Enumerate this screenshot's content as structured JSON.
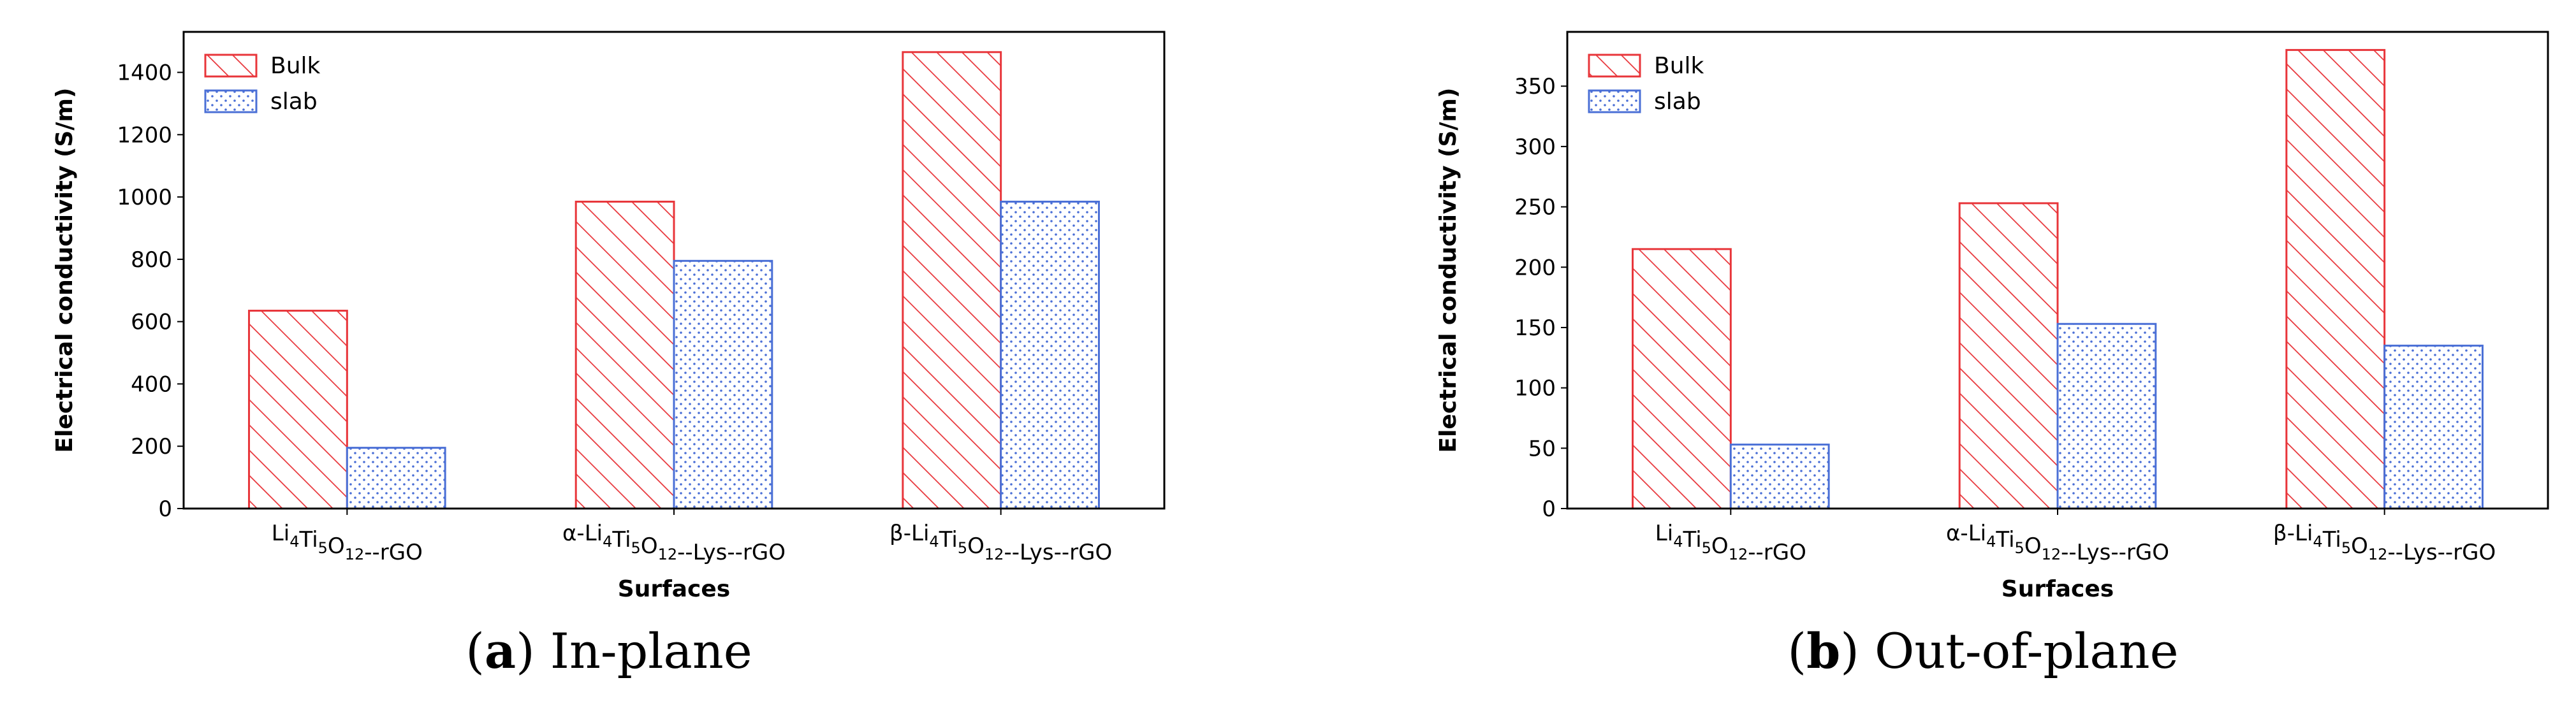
{
  "colors": {
    "bulk": "#e8353a",
    "slab": "#4a6fd6"
  },
  "legend": {
    "bulk": "Bulk",
    "slab": "slab"
  },
  "captions": [
    {
      "letter": "a",
      "text": " In-plane"
    },
    {
      "letter": "b",
      "text": " Out-of-plane"
    }
  ],
  "chart_data": [
    {
      "type": "bar",
      "categories": [
        "Li4Ti5O12--rGO",
        "α-Li4Ti5O12--Lys--rGO",
        "β-Li4Ti5O12--Lys--rGO"
      ],
      "series": [
        {
          "name": "Bulk",
          "values": [
            635,
            985,
            1465
          ]
        },
        {
          "name": "slab",
          "values": [
            195,
            795,
            985
          ]
        }
      ],
      "xlabel": "Surfaces",
      "ylabel": "Electrical conductivity (S/m)",
      "ylim": [
        0,
        1530
      ],
      "yticks": [
        0,
        200,
        400,
        600,
        800,
        1000,
        1200,
        1400
      ],
      "legend_position": "top-left",
      "grid": false
    },
    {
      "type": "bar",
      "categories": [
        "Li4Ti5O12--rGO",
        "α-Li4Ti5O12--Lys--rGO",
        "β-Li4Ti5O12--Lys--rGO"
      ],
      "series": [
        {
          "name": "Bulk",
          "values": [
            215,
            253,
            380
          ]
        },
        {
          "name": "slab",
          "values": [
            53,
            153,
            135
          ]
        }
      ],
      "xlabel": "Surfaces",
      "ylabel": "Electrical conductivity (S/m)",
      "ylim": [
        0,
        395
      ],
      "yticks": [
        0,
        50,
        100,
        150,
        200,
        250,
        300,
        350
      ],
      "legend_position": "top-left",
      "grid": false
    }
  ]
}
